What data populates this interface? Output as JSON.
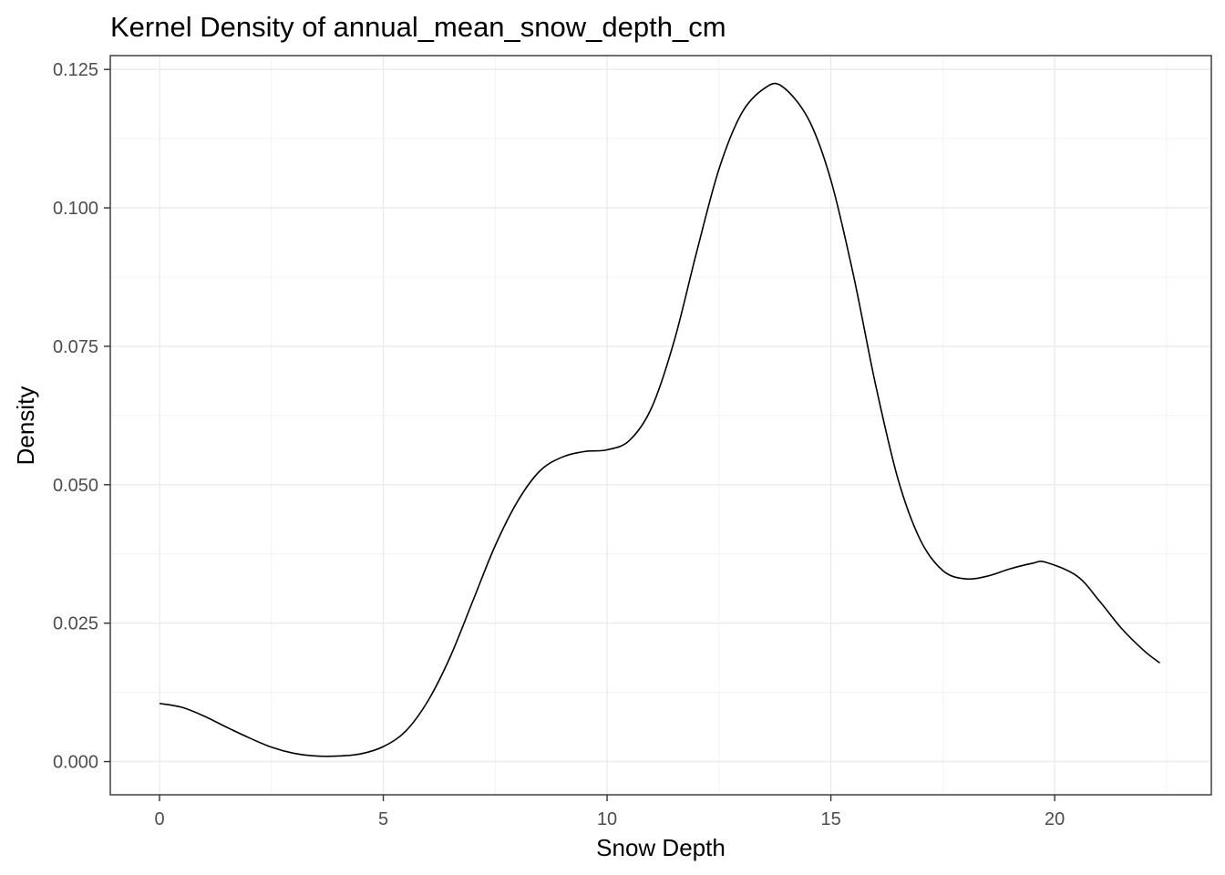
{
  "chart_data": {
    "type": "line",
    "title": "Kernel Density of annual_mean_snow_depth_cm",
    "xlabel": "Snow Depth",
    "ylabel": "Density",
    "xlim": [
      -1.1,
      23.5
    ],
    "ylim": [
      -0.006,
      0.1275
    ],
    "x_ticks": [
      0,
      5,
      10,
      15,
      20
    ],
    "x_tick_labels": [
      "0",
      "5",
      "10",
      "15",
      "20"
    ],
    "y_ticks": [
      0,
      0.025,
      0.05,
      0.075,
      0.1,
      0.125
    ],
    "y_tick_labels": [
      "0.000",
      "0.025",
      "0.050",
      "0.075",
      "0.100",
      "0.125"
    ],
    "grid": true,
    "legend": "none",
    "series": [
      {
        "color": "#000000",
        "x": [
          0.0,
          0.5,
          1.0,
          1.5,
          2.0,
          2.5,
          3.0,
          3.5,
          4.0,
          4.5,
          5.0,
          5.5,
          6.0,
          6.5,
          7.0,
          7.5,
          8.0,
          8.5,
          9.0,
          9.5,
          10.0,
          10.5,
          11.0,
          11.5,
          12.0,
          12.5,
          13.0,
          13.5,
          13.9,
          14.5,
          15.0,
          15.5,
          16.0,
          16.5,
          17.0,
          17.5,
          18.0,
          18.5,
          19.0,
          19.5,
          19.8,
          20.5,
          21.0,
          21.5,
          22.0,
          22.35
        ],
        "y": [
          0.0105,
          0.0098,
          0.0082,
          0.0062,
          0.0043,
          0.0026,
          0.0015,
          0.001,
          0.001,
          0.0014,
          0.0027,
          0.0055,
          0.011,
          0.019,
          0.029,
          0.039,
          0.047,
          0.0525,
          0.055,
          0.056,
          0.0563,
          0.058,
          0.064,
          0.076,
          0.092,
          0.107,
          0.117,
          0.1215,
          0.122,
          0.116,
          0.105,
          0.088,
          0.068,
          0.051,
          0.04,
          0.0345,
          0.033,
          0.0335,
          0.0348,
          0.0358,
          0.036,
          0.0335,
          0.029,
          0.024,
          0.02,
          0.0178
        ]
      }
    ]
  }
}
